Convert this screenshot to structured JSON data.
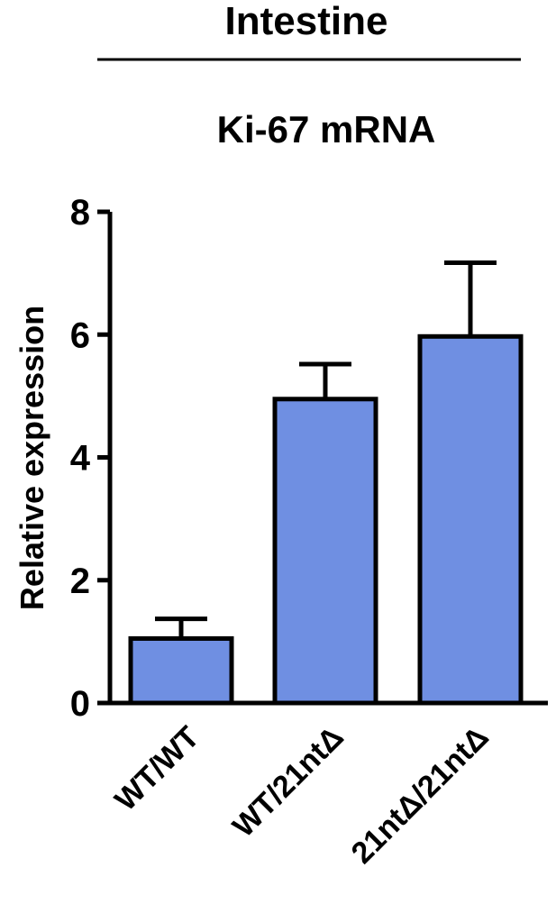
{
  "chart_data": {
    "type": "bar",
    "header": "Intestine",
    "title": "Ki-67 mRNA",
    "xlabel": "",
    "ylabel": "Relative expression",
    "categories": [
      "WT/WT",
      "WT/21ntΔ",
      "21ntΔ/21ntΔ"
    ],
    "values": [
      1.05,
      4.95,
      5.97
    ],
    "errors": [
      0.32,
      0.57,
      1.2
    ],
    "ylim": [
      0,
      8
    ],
    "yticks": [
      0,
      2,
      4,
      6,
      8
    ],
    "grid": false,
    "legend": "none",
    "colors": {
      "bar": "#6F8FE2",
      "stroke": "#000000"
    }
  }
}
